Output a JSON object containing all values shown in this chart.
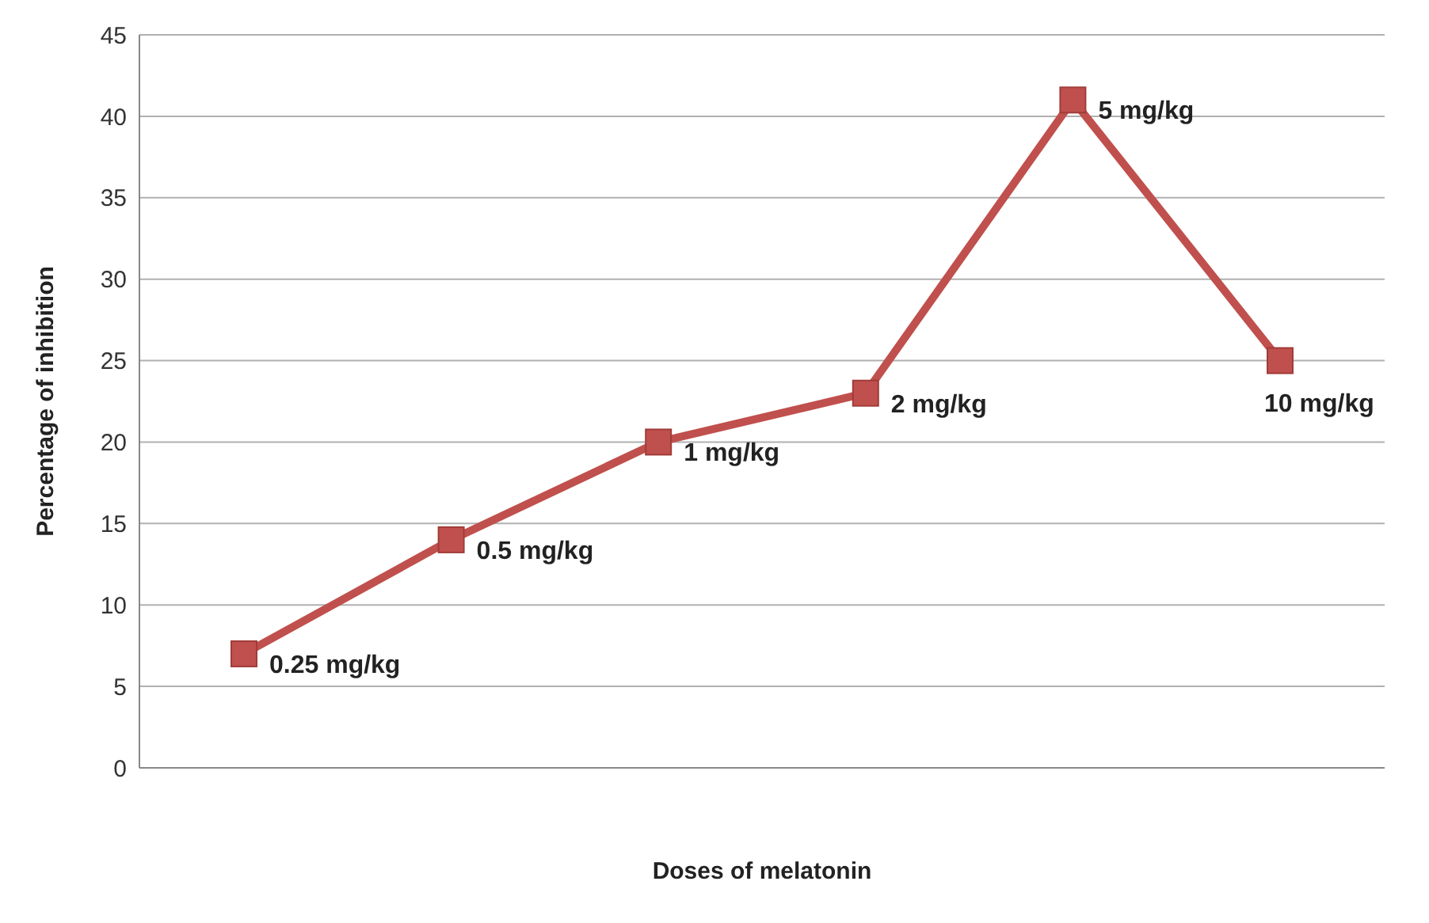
{
  "chart_data": {
    "type": "line",
    "xlabel": "Doses of melatonin",
    "ylabel": "Percentage of inhibition",
    "categories": [
      null,
      null,
      null,
      null,
      null,
      null
    ],
    "series": [
      {
        "color": "#c0504d",
        "values": [
          7,
          14,
          20,
          23,
          41,
          25
        ]
      }
    ],
    "ylim": [
      0,
      45
    ],
    "yticks": [
      0,
      5,
      10,
      15,
      20,
      25,
      30,
      35,
      40,
      45
    ],
    "grid": "y",
    "marker": "square",
    "line_style": "solid",
    "tick_labels": "y",
    "annotations": [
      "0.25 mg/kg",
      "0.5 mg/kg",
      "1 mg/kg",
      "2 mg/kg",
      "5 mg/kg",
      "10 mg/kg"
    ]
  }
}
